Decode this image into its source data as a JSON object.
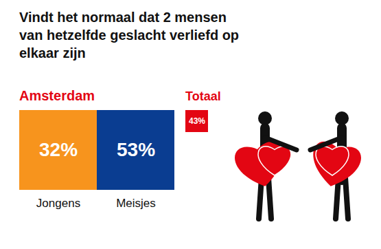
{
  "chart_data": {
    "type": "tile",
    "title": "Vindt het normaal dat 2 mensen van hetzelfde geslacht verliefd op elkaar zijn",
    "group": "Amsterdam",
    "group_color": "#e30613",
    "categories": [
      "Jongens",
      "Meisjes"
    ],
    "values": [
      32,
      53
    ],
    "value_labels": [
      "32%",
      "53%"
    ],
    "colors": [
      "#f7941d",
      "#0a3d91"
    ],
    "data_labels": true,
    "tick_labels": "x",
    "total": {
      "label": "Totaal",
      "value": 43,
      "value_label": "43%",
      "color": "#e30613"
    }
  }
}
